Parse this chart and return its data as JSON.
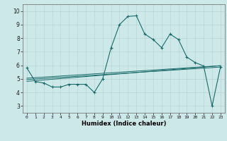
{
  "title": "",
  "xlabel": "Humidex (Indice chaleur)",
  "background_color": "#cde8e8",
  "grid_color": "#b8d4d4",
  "line_color": "#1a6b6b",
  "x_values": [
    0,
    1,
    2,
    3,
    4,
    5,
    6,
    7,
    8,
    9,
    10,
    11,
    12,
    13,
    14,
    15,
    16,
    17,
    18,
    19,
    20,
    21,
    22,
    23
  ],
  "main_series": [
    5.8,
    4.8,
    4.7,
    4.4,
    4.4,
    4.6,
    4.6,
    4.6,
    4.0,
    5.0,
    7.3,
    9.0,
    9.6,
    9.65,
    8.3,
    7.9,
    7.3,
    8.3,
    7.9,
    6.6,
    6.2,
    5.95,
    3.0,
    5.9
  ],
  "linear1": [
    4.82,
    4.87,
    4.92,
    4.97,
    5.02,
    5.07,
    5.12,
    5.17,
    5.22,
    5.27,
    5.32,
    5.37,
    5.42,
    5.47,
    5.52,
    5.57,
    5.62,
    5.67,
    5.72,
    5.77,
    5.82,
    5.87,
    5.92,
    5.97
  ],
  "linear2": [
    4.95,
    4.99,
    5.03,
    5.07,
    5.11,
    5.15,
    5.19,
    5.23,
    5.27,
    5.31,
    5.35,
    5.39,
    5.43,
    5.47,
    5.51,
    5.55,
    5.59,
    5.63,
    5.67,
    5.71,
    5.75,
    5.79,
    5.83,
    5.87
  ],
  "linear3": [
    5.05,
    5.09,
    5.13,
    5.17,
    5.21,
    5.25,
    5.29,
    5.33,
    5.37,
    5.41,
    5.45,
    5.49,
    5.53,
    5.57,
    5.61,
    5.65,
    5.69,
    5.73,
    5.77,
    5.81,
    5.85,
    5.89,
    5.93,
    5.97
  ],
  "xlim": [
    -0.5,
    23.5
  ],
  "ylim": [
    2.5,
    10.5
  ],
  "yticks": [
    3,
    4,
    5,
    6,
    7,
    8,
    9,
    10
  ],
  "xticks": [
    0,
    1,
    2,
    3,
    4,
    5,
    6,
    7,
    8,
    9,
    10,
    11,
    12,
    13,
    14,
    15,
    16,
    17,
    18,
    19,
    20,
    21,
    22,
    23
  ]
}
